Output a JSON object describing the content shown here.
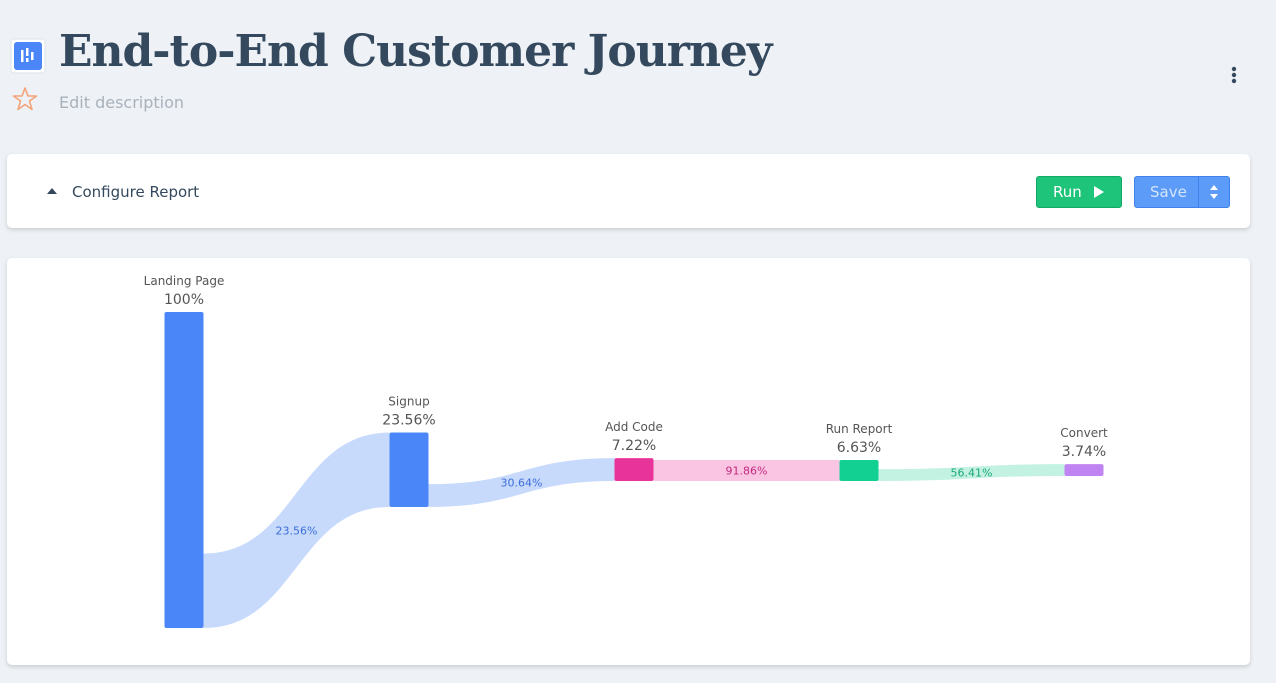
{
  "header": {
    "title": "End-to-End Customer Journey",
    "description": "Edit description"
  },
  "config": {
    "label": "Configure Report",
    "run": "Run",
    "save": "Save"
  },
  "chart_data": {
    "type": "funnel",
    "categories": [
      "Landing Page",
      "Signup",
      "Add Code",
      "Run Report",
      "Convert"
    ],
    "values": [
      100,
      23.56,
      7.22,
      6.63,
      3.74
    ],
    "value_labels": [
      "100%",
      "23.56%",
      "7.22%",
      "6.63%",
      "3.74%"
    ],
    "colors": [
      "#4a86f7",
      "#4a86f7",
      "#e8339a",
      "#12cf92",
      "#c084f2"
    ],
    "flow_colors": [
      "#c8dafc",
      "#c8dafc",
      "#f9c5e2",
      "#c4f2e2"
    ],
    "conversion": {
      "values": [
        23.56,
        30.64,
        91.86,
        56.41
      ],
      "value_labels": [
        "23.56%",
        "30.64%",
        "91.86%",
        "56.41%"
      ],
      "colors": [
        "#3b6fd6",
        "#3b6fd6",
        "#c42a80",
        "#19a874"
      ]
    }
  }
}
